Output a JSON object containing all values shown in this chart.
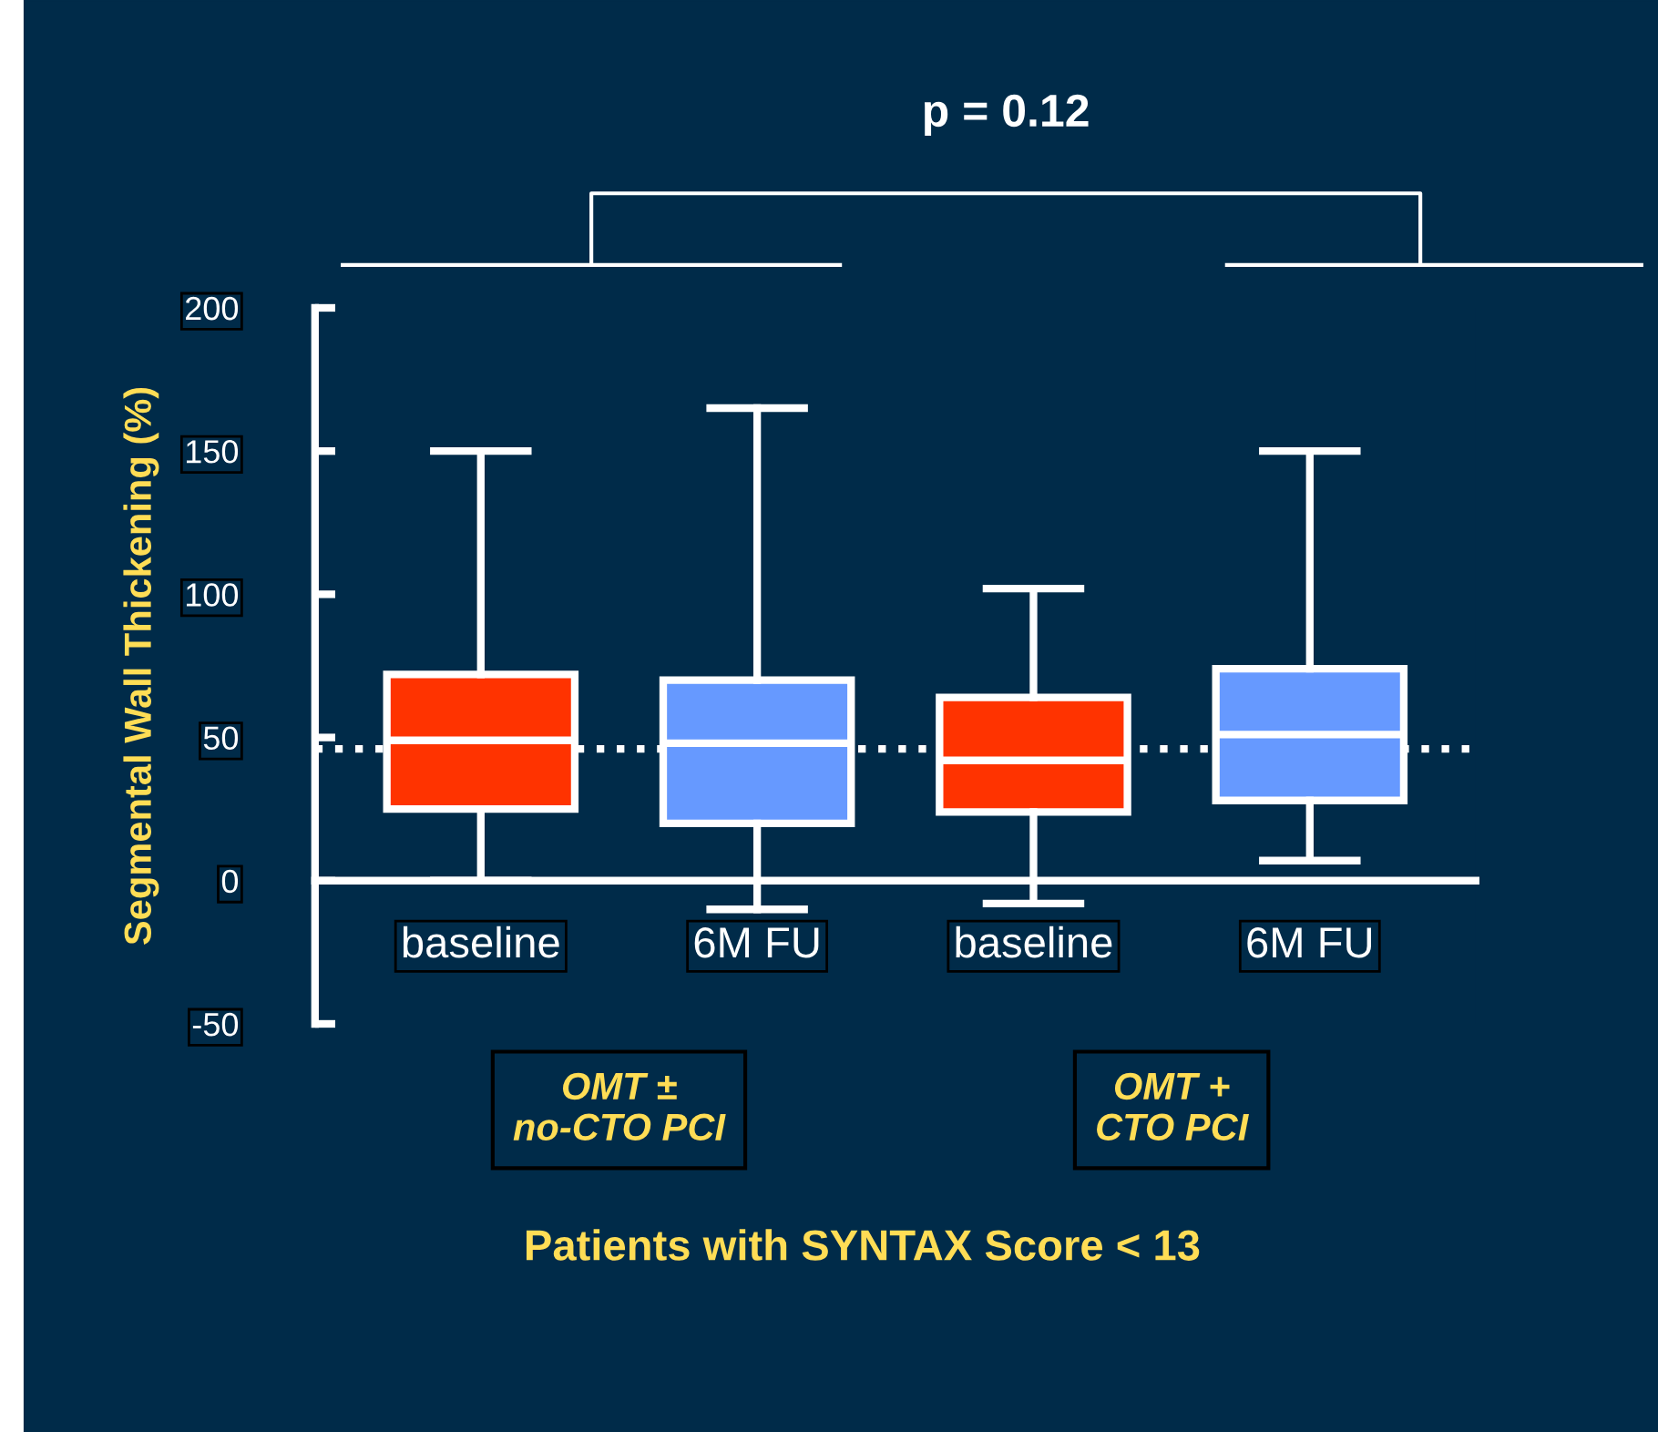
{
  "chart_data": {
    "type": "box",
    "title": "p = 0.12",
    "ylabel": "Segmental Wall Thickening (%)",
    "xlabel": "Patients with SYNTAX Score < 13",
    "categories": [
      "baseline",
      "6M FU",
      "baseline",
      "6M FU"
    ],
    "colors": [
      "#ff3300",
      "#6699ff",
      "#ff3300",
      "#6699ff"
    ],
    "boxes": [
      {
        "low": 0,
        "q1": 25,
        "median": 49,
        "q3": 72,
        "high": 150
      },
      {
        "low": -10,
        "q1": 20,
        "median": 48,
        "q3": 70,
        "high": 165
      },
      {
        "low": -8,
        "q1": 24,
        "median": 42,
        "q3": 64,
        "high": 102
      },
      {
        "low": 7,
        "q1": 28,
        "median": 51,
        "q3": 74,
        "high": 150
      }
    ],
    "ylim": [
      -50,
      200
    ],
    "yticks": [
      -50,
      0,
      50,
      100,
      150,
      200
    ],
    "ref_lines": [
      {
        "axis": "y",
        "value": 46,
        "label": null,
        "color": "#ffffff",
        "line_style": "dotted"
      }
    ],
    "annotations": [
      "OMT ±\nno-CTO PCI",
      "OMT +\nCTO PCI"
    ],
    "grid": false,
    "legend": false
  }
}
